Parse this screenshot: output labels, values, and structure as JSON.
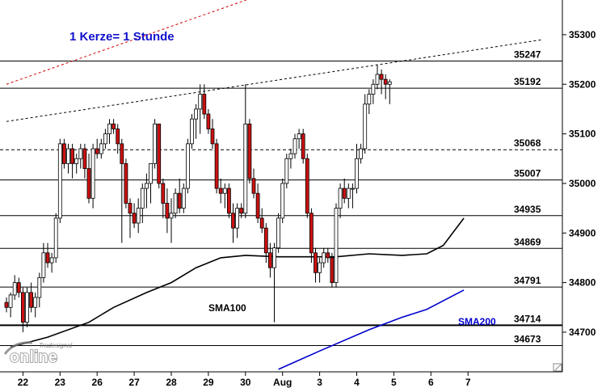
{
  "chart_data": {
    "type": "candlestick",
    "annotation": "1 Kerze= 1 Stunde",
    "ylim": [
      34620,
      35370
    ],
    "y_ticks": [
      34700,
      34800,
      34900,
      35000,
      35100,
      35200,
      35300
    ],
    "x_labels": [
      {
        "label": "22",
        "slot": 4
      },
      {
        "label": "23",
        "slot": 13
      },
      {
        "label": "26",
        "slot": 22
      },
      {
        "label": "27",
        "slot": 31
      },
      {
        "label": "28",
        "slot": 40
      },
      {
        "label": "29",
        "slot": 49
      },
      {
        "label": "30",
        "slot": 58
      },
      {
        "label": "Aug",
        "slot": 67
      },
      {
        "label": "3",
        "slot": 76
      },
      {
        "label": "4",
        "slot": 85
      },
      {
        "label": "5",
        "slot": 94
      },
      {
        "label": "6",
        "slot": 103
      },
      {
        "label": "7",
        "slot": 112
      }
    ],
    "levels": [
      {
        "value": 35247,
        "label": "35247",
        "style": "solid"
      },
      {
        "value": 35192,
        "label": "35192",
        "style": "solid"
      },
      {
        "value": 35068,
        "label": "35068",
        "style": "dashed"
      },
      {
        "value": 35007,
        "label": "35007",
        "style": "solid"
      },
      {
        "value": 34935,
        "label": "34935",
        "style": "solid"
      },
      {
        "value": 34869,
        "label": "34869",
        "style": "solid"
      },
      {
        "value": 34791,
        "label": "34791",
        "style": "solid"
      },
      {
        "value": 34714,
        "label": "34714",
        "style": "solid-bold"
      },
      {
        "value": 34673,
        "label": "34673",
        "style": "solid"
      }
    ],
    "sma100": {
      "name": "SMA100",
      "color": "#000000",
      "points": [
        [
          1,
          34670
        ],
        [
          10,
          34690
        ],
        [
          20,
          34720
        ],
        [
          26,
          34750
        ],
        [
          34,
          34780
        ],
        [
          40,
          34800
        ],
        [
          46,
          34830
        ],
        [
          52,
          34850
        ],
        [
          58,
          34855
        ],
        [
          66,
          34852
        ],
        [
          74,
          34852
        ],
        [
          80,
          34852
        ],
        [
          88,
          34858
        ],
        [
          96,
          34855
        ],
        [
          102,
          34858
        ],
        [
          106,
          34875
        ],
        [
          111,
          34930
        ]
      ]
    },
    "sma200": {
      "name": "SMA200",
      "color": "#0000cc",
      "points": [
        [
          66,
          34625
        ],
        [
          76,
          34662
        ],
        [
          88,
          34705
        ],
        [
          96,
          34730
        ],
        [
          102,
          34746
        ],
        [
          111,
          34785
        ]
      ]
    },
    "trendlines": [
      {
        "color": "#cc0000",
        "points": [
          [
            0,
            35200
          ],
          [
            65,
            35390
          ]
        ]
      },
      {
        "color": "#000000",
        "points": [
          [
            0,
            35125
          ],
          [
            130,
            35290
          ]
        ]
      }
    ],
    "candles": [
      [
        34760,
        34770,
        34740,
        34750
      ],
      [
        34750,
        34780,
        34730,
        34775
      ],
      [
        34775,
        34815,
        34765,
        34800
      ],
      [
        34800,
        34810,
        34770,
        34780
      ],
      [
        34780,
        34790,
        34700,
        34720
      ],
      [
        34720,
        34790,
        34710,
        34780
      ],
      [
        34780,
        34800,
        34740,
        34750
      ],
      [
        34750,
        34780,
        34730,
        34770
      ],
      [
        34770,
        34820,
        34750,
        34810
      ],
      [
        34810,
        34880,
        34800,
        34860
      ],
      [
        34860,
        34880,
        34830,
        34840
      ],
      [
        34840,
        34860,
        34820,
        34850
      ],
      [
        34850,
        34940,
        34840,
        34930
      ],
      [
        34930,
        35090,
        34920,
        35080
      ],
      [
        35080,
        35090,
        35030,
        35040
      ],
      [
        35040,
        35080,
        35020,
        35070
      ],
      [
        35070,
        35080,
        35010,
        35040
      ],
      [
        35040,
        35060,
        35020,
        35050
      ],
      [
        35050,
        35080,
        35030,
        35070
      ],
      [
        35070,
        35080,
        35010,
        35030
      ],
      [
        35030,
        35060,
        34960,
        34970
      ],
      [
        34970,
        35080,
        34950,
        35070
      ],
      [
        35070,
        35090,
        35050,
        35060
      ],
      [
        35060,
        35090,
        35050,
        35080
      ],
      [
        35080,
        35110,
        35070,
        35100
      ],
      [
        35100,
        35130,
        35080,
        35120
      ],
      [
        35120,
        35130,
        35100,
        35110
      ],
      [
        35110,
        35120,
        35060,
        35080
      ],
      [
        35080,
        35090,
        34880,
        35040
      ],
      [
        35040,
        35050,
        34950,
        34960
      ],
      [
        34960,
        34970,
        34890,
        34940
      ],
      [
        34940,
        34960,
        34910,
        34920
      ],
      [
        34920,
        34970,
        34900,
        34950
      ],
      [
        34950,
        35000,
        34920,
        34990
      ],
      [
        34990,
        35020,
        34950,
        35000
      ],
      [
        35000,
        35040,
        34960,
        35040
      ],
      [
        35040,
        35130,
        35030,
        35120
      ],
      [
        35120,
        35120,
        34990,
        35000
      ],
      [
        35000,
        35010,
        34930,
        34960
      ],
      [
        34960,
        34990,
        34900,
        34930
      ],
      [
        34930,
        34970,
        34880,
        34940
      ],
      [
        34940,
        34990,
        34930,
        34980
      ],
      [
        34980,
        35010,
        34940,
        34950
      ],
      [
        34950,
        35000,
        34940,
        34990
      ],
      [
        34990,
        35090,
        34980,
        35080
      ],
      [
        35080,
        35140,
        35070,
        35130
      ],
      [
        35130,
        35160,
        35090,
        35150
      ],
      [
        35150,
        35200,
        35100,
        35180
      ],
      [
        35180,
        35200,
        35130,
        35140
      ],
      [
        35140,
        35150,
        35100,
        35110
      ],
      [
        35110,
        35130,
        35070,
        35080
      ],
      [
        35080,
        35090,
        34980,
        34990
      ],
      [
        34990,
        35010,
        34960,
        34980
      ],
      [
        34980,
        35000,
        34950,
        34990
      ],
      [
        34990,
        35000,
        34930,
        34940
      ],
      [
        34940,
        34960,
        34880,
        34910
      ],
      [
        34910,
        34960,
        34890,
        34950
      ],
      [
        34950,
        34960,
        34930,
        34940
      ],
      [
        34940,
        35200,
        34930,
        35120
      ],
      [
        35120,
        35130,
        35000,
        35010
      ],
      [
        35010,
        35030,
        34970,
        34980
      ],
      [
        34980,
        35000,
        34920,
        34930
      ],
      [
        34930,
        34950,
        34900,
        34910
      ],
      [
        34910,
        34920,
        34840,
        34860
      ],
      [
        34860,
        34880,
        34810,
        34830
      ],
      [
        34830,
        34880,
        34720,
        34870
      ],
      [
        34870,
        34940,
        34860,
        34930
      ],
      [
        34930,
        35010,
        34920,
        35000
      ],
      [
        35000,
        35060,
        34990,
        35050
      ],
      [
        35050,
        35070,
        35030,
        35060
      ],
      [
        35060,
        35100,
        35050,
        35090
      ],
      [
        35090,
        35110,
        35070,
        35100
      ],
      [
        35100,
        35110,
        35040,
        35050
      ],
      [
        35050,
        35060,
        34930,
        34940
      ],
      [
        34940,
        34950,
        34840,
        34860
      ],
      [
        34860,
        34870,
        34800,
        34820
      ],
      [
        34820,
        34850,
        34800,
        34840
      ],
      [
        34840,
        34870,
        34830,
        34860
      ],
      [
        34860,
        34870,
        34840,
        34850
      ],
      [
        34850,
        34860,
        34790,
        34800
      ],
      [
        34800,
        34960,
        34790,
        34950
      ],
      [
        34950,
        35000,
        34930,
        34990
      ],
      [
        34990,
        35010,
        34960,
        34970
      ],
      [
        34970,
        35000,
        34950,
        34990
      ],
      [
        34990,
        35000,
        34950,
        34990
      ],
      [
        34990,
        35080,
        34980,
        35050
      ],
      [
        35050,
        35080,
        35040,
        35070
      ],
      [
        35070,
        35180,
        35060,
        35160
      ],
      [
        35160,
        35190,
        35140,
        35180
      ],
      [
        35180,
        35210,
        35160,
        35200
      ],
      [
        35200,
        35240,
        35190,
        35220
      ],
      [
        35220,
        35230,
        35180,
        35210
      ],
      [
        35210,
        35220,
        35170,
        35200
      ],
      [
        35200,
        35210,
        35160,
        35205
      ]
    ]
  },
  "badges": {
    "sma100_label": "SMA100",
    "sma200_label": "SMA200",
    "watermark_brand": "Tradesignal",
    "watermark_name": "online"
  },
  "colors": {
    "up": "#ffffff",
    "down": "#cc1111",
    "grid": "#000000",
    "sma200": "#0000cc",
    "note": "#1010cc",
    "red_trend": "#cc0000"
  }
}
